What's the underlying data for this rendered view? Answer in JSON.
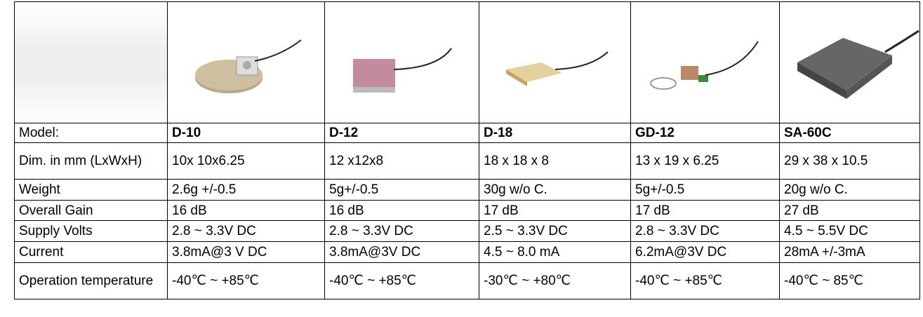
{
  "table": {
    "rows": [
      {
        "label": "Model:",
        "cells": [
          "D-10",
          "D-12",
          "D-18",
          "GD-12",
          "SA-60C"
        ]
      },
      {
        "label": "Dim. in mm (LxWxH)",
        "cells": [
          "10x 10x6.25",
          "12 x12x8",
          "18 x 18 x 8",
          "13 x 19 x 6.25",
          "29 x 38 x 10.5"
        ]
      },
      {
        "label": "Weight",
        "cells": [
          "2.6g +/-0.5",
          "5g+/-0.5",
          "30g w/o C.",
          "5g+/-0.5",
          "20g w/o C."
        ]
      },
      {
        "label": "Overall Gain",
        "cells": [
          "16 dB",
          "16 dB",
          "17 dB",
          "17 dB",
          "27 dB"
        ]
      },
      {
        "label": "Supply Volts",
        "cells": [
          "2.8 ~ 3.3V DC",
          "2.8 ~ 3.3V DC",
          "2.5 ~ 3.3V DC",
          "2.8 ~ 3.3V DC",
          "4.5 ~ 5.5V DC"
        ]
      },
      {
        "label": "Current",
        "cells": [
          "3.8mA@3 V DC",
          "3.8mA@3V DC",
          "4.5 ~ 8.0 mA",
          "6.2mA@3V DC",
          "28mA +/-3mA"
        ]
      },
      {
        "label": "Operation temperature",
        "cells": [
          "-40℃ ~ +85℃",
          "-40℃ ~ +85℃",
          "-30℃ ~ +80℃",
          "-40℃ ~ +85℃",
          "-40℃ ~ 85℃"
        ]
      }
    ]
  }
}
